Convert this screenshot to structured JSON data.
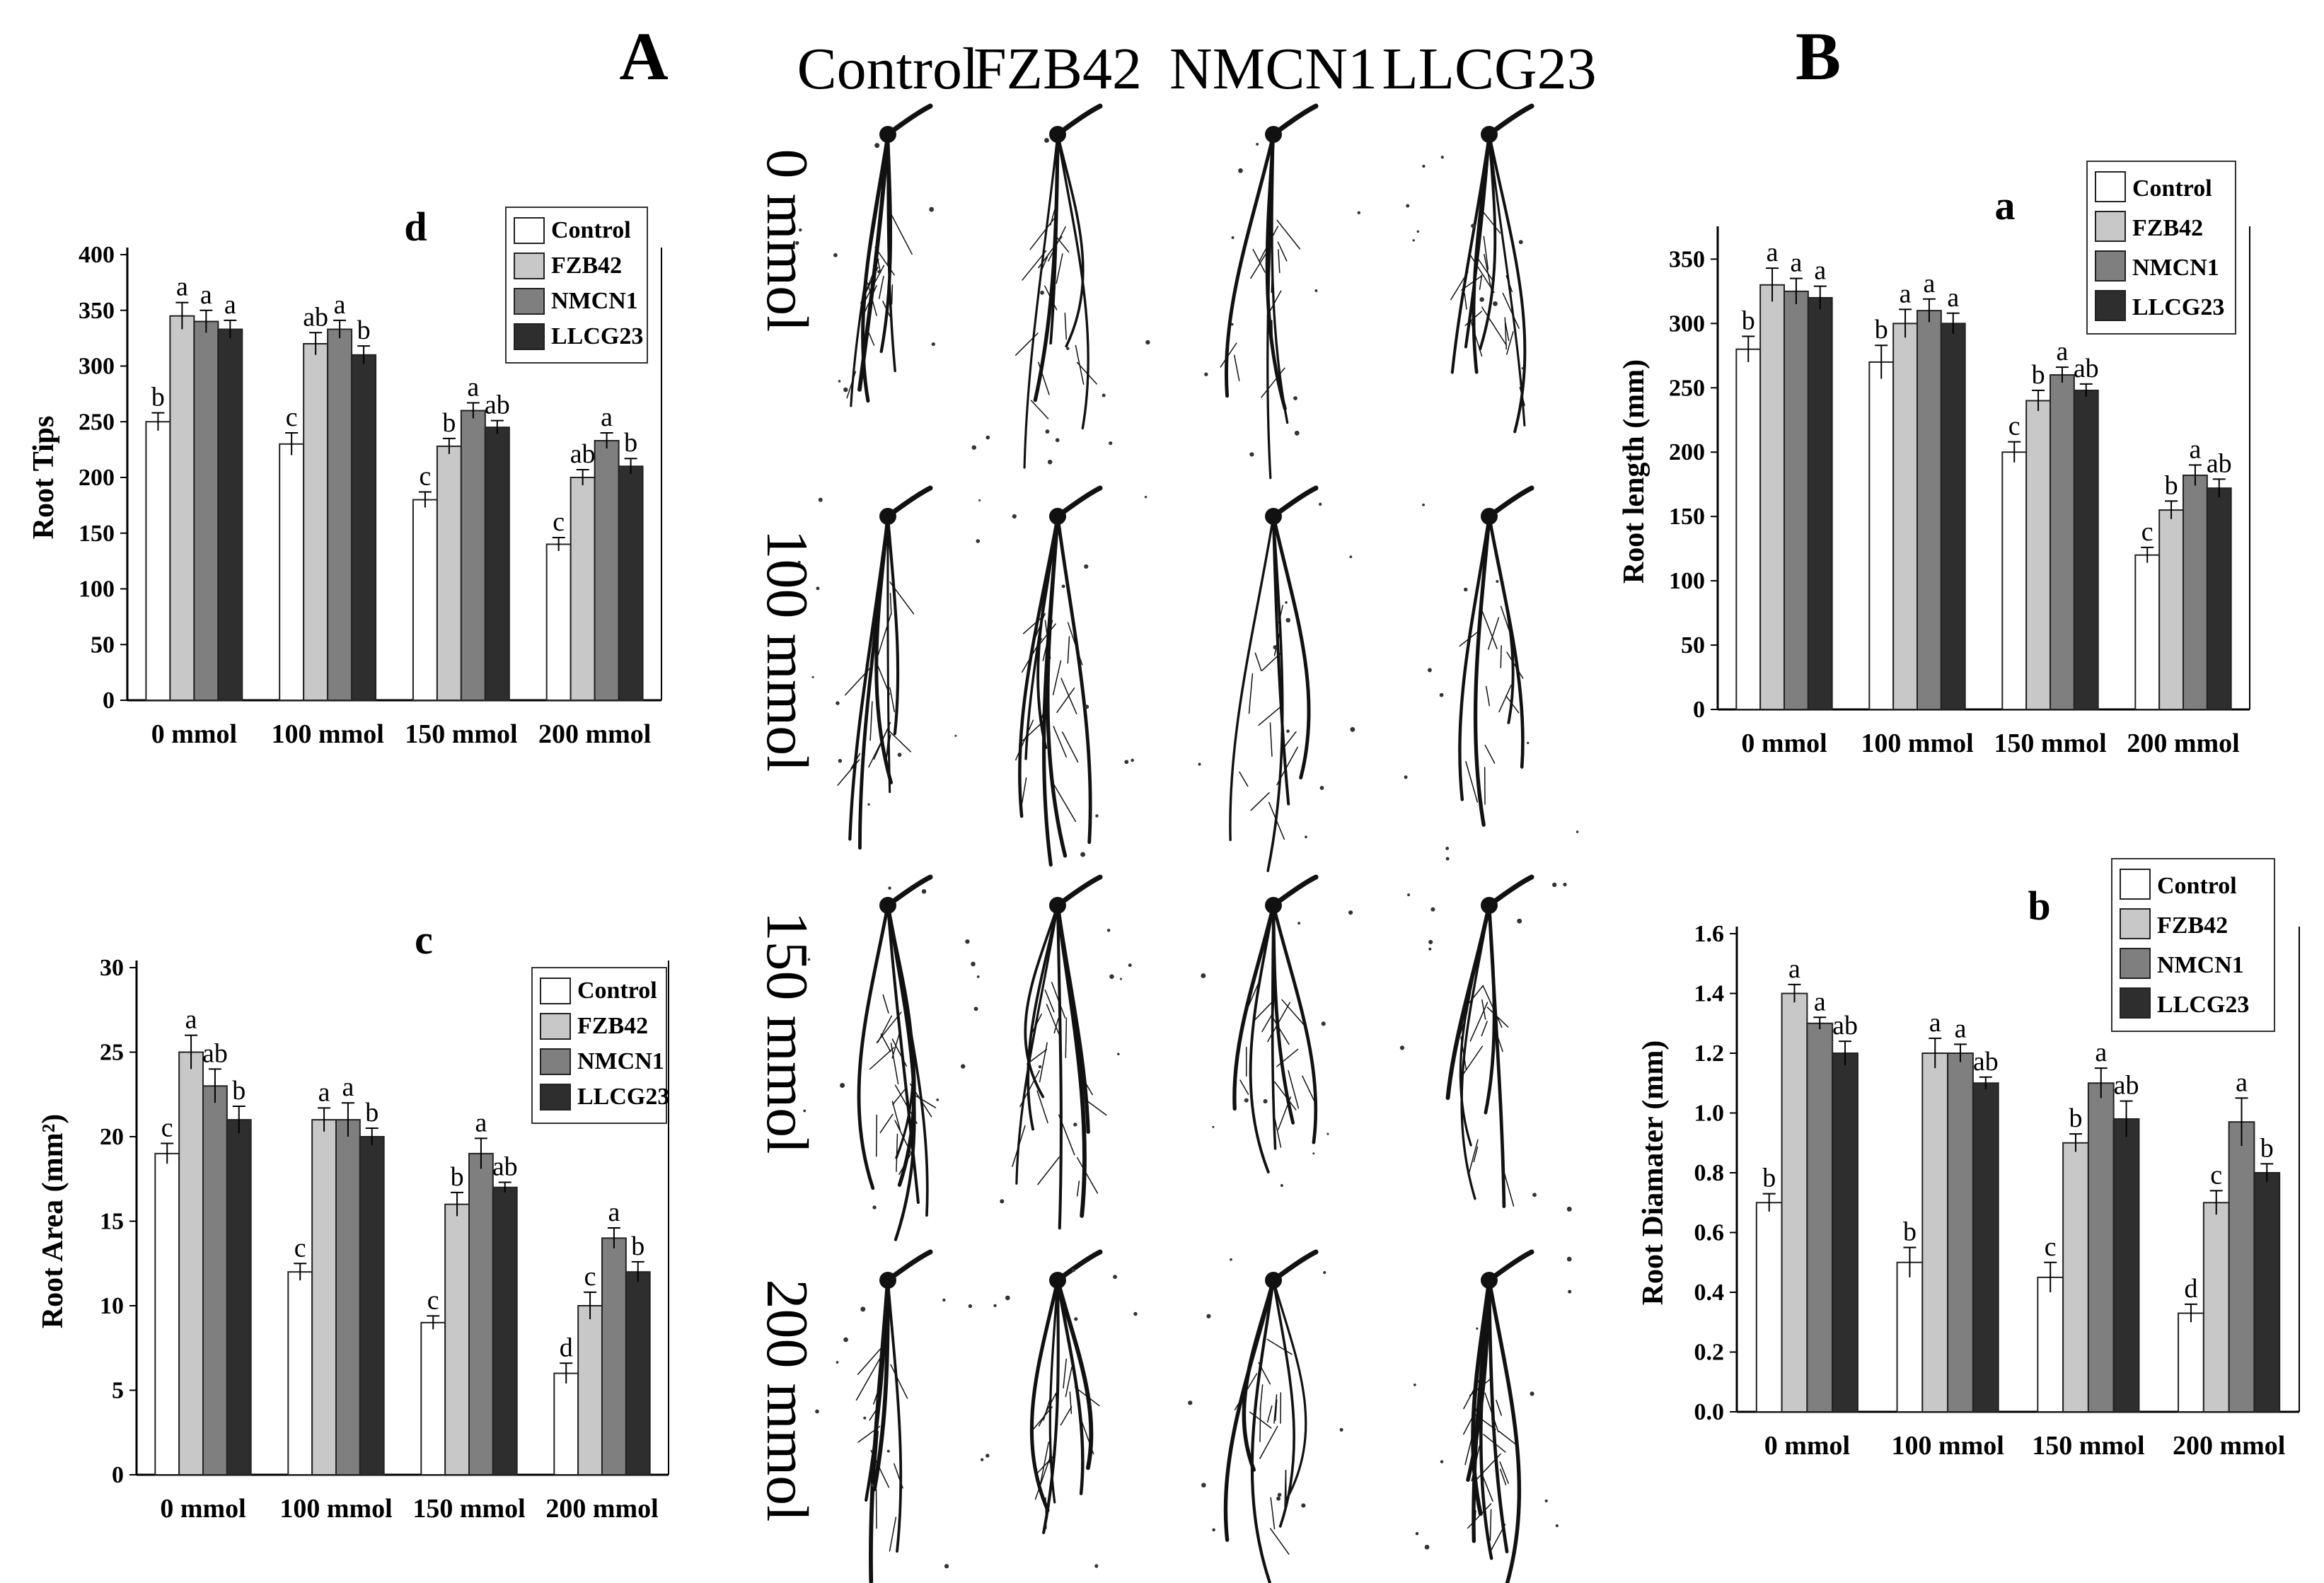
{
  "panel_labels": {
    "A": "A",
    "B": "B"
  },
  "photo_grid": {
    "columns": [
      "Control",
      "FZB42",
      "NMCN1",
      "LLCG23"
    ],
    "rows": [
      "0 mmol",
      "100 mmol",
      "150 mmol",
      "200 mmol"
    ]
  },
  "colors": {
    "Control": "#ffffff",
    "FZB42": "#c8c8c8",
    "NMCN1": "#7f7f7f",
    "LLCG23": "#2e2e2e"
  },
  "chart_data": [
    {
      "id": "d",
      "type": "bar",
      "title": "d",
      "ylabel": "Root Tips",
      "ylim": [
        0,
        400
      ],
      "yticks": [
        "0",
        "50",
        "100",
        "150",
        "200",
        "250",
        "300",
        "350",
        "400"
      ],
      "categories": [
        "0 mmol",
        "100 mmol",
        "150 mmol",
        "200 mmol"
      ],
      "legend_position": "top-right",
      "series": [
        {
          "name": "Control",
          "values": [
            250,
            230,
            180,
            140
          ],
          "errors": [
            8,
            10,
            7,
            6
          ],
          "labels": [
            "b",
            "c",
            "c",
            "c"
          ]
        },
        {
          "name": "FZB42",
          "values": [
            345,
            320,
            228,
            200
          ],
          "errors": [
            12,
            10,
            7,
            7
          ],
          "labels": [
            "a",
            "ab",
            "b",
            "ab"
          ]
        },
        {
          "name": "NMCN1",
          "values": [
            340,
            333,
            260,
            233
          ],
          "errors": [
            10,
            8,
            7,
            7
          ],
          "labels": [
            "a",
            "a",
            "a",
            "a"
          ]
        },
        {
          "name": "LLCG23",
          "values": [
            333,
            310,
            245,
            210
          ],
          "errors": [
            8,
            8,
            6,
            7
          ],
          "labels": [
            "a",
            "b",
            "ab",
            "b"
          ]
        }
      ]
    },
    {
      "id": "c",
      "type": "bar",
      "title": "c",
      "ylabel": "Root Area (mm²)",
      "ylim": [
        0,
        30
      ],
      "yticks": [
        "0",
        "5",
        "10",
        "15",
        "20",
        "25",
        "30"
      ],
      "categories": [
        "0 mmol",
        "100 mmol",
        "150 mmol",
        "200 mmol"
      ],
      "legend_position": "top-right",
      "series": [
        {
          "name": "Control",
          "values": [
            19,
            12,
            9,
            6
          ],
          "errors": [
            0.6,
            0.5,
            0.4,
            0.6
          ],
          "labels": [
            "c",
            "c",
            "c",
            "d"
          ]
        },
        {
          "name": "FZB42",
          "values": [
            25,
            21,
            16,
            10
          ],
          "errors": [
            1.0,
            0.7,
            0.7,
            0.8
          ],
          "labels": [
            "a",
            "a",
            "b",
            "c"
          ]
        },
        {
          "name": "NMCN1",
          "values": [
            23,
            21,
            19,
            14
          ],
          "errors": [
            1.0,
            1.0,
            0.9,
            0.6
          ],
          "labels": [
            "ab",
            "a",
            "a",
            "a"
          ]
        },
        {
          "name": "LLCG23",
          "values": [
            21,
            20,
            17,
            12
          ],
          "errors": [
            0.8,
            0.5,
            0.3,
            0.6
          ],
          "labels": [
            "b",
            "b",
            "ab",
            "b"
          ]
        }
      ]
    },
    {
      "id": "a",
      "type": "bar",
      "title": "a",
      "ylabel": "Root length (mm)",
      "ylim": [
        0,
        370
      ],
      "yticks": [
        "0",
        "50",
        "100",
        "150",
        "200",
        "250",
        "300",
        "350"
      ],
      "categories": [
        "0 mmol",
        "100 mmol",
        "150 mmol",
        "200 mmol"
      ],
      "legend_position": "top-right",
      "series": [
        {
          "name": "Control",
          "values": [
            280,
            270,
            200,
            120
          ],
          "errors": [
            10,
            13,
            8,
            6
          ],
          "labels": [
            "b",
            "b",
            "c",
            "c"
          ]
        },
        {
          "name": "FZB42",
          "values": [
            330,
            300,
            240,
            155
          ],
          "errors": [
            13,
            11,
            8,
            7
          ],
          "labels": [
            "a",
            "a",
            "b",
            "b"
          ]
        },
        {
          "name": "NMCN1",
          "values": [
            325,
            310,
            260,
            182
          ],
          "errors": [
            10,
            9,
            6,
            8
          ],
          "labels": [
            "a",
            "a",
            "a",
            "a"
          ]
        },
        {
          "name": "LLCG23",
          "values": [
            320,
            300,
            248,
            172
          ],
          "errors": [
            9,
            8,
            5,
            7
          ],
          "labels": [
            "a",
            "a",
            "ab",
            "ab"
          ]
        }
      ]
    },
    {
      "id": "b",
      "type": "bar",
      "title": "b",
      "ylabel": "Root Diamater (mm)",
      "ylim": [
        0,
        1.6
      ],
      "yticks": [
        "0.0",
        "0.2",
        "0.4",
        "0.6",
        "0.8",
        "1.0",
        "1.2",
        "1.4",
        "1.6"
      ],
      "categories": [
        "0 mmol",
        "100 mmol",
        "150 mmol",
        "200 mmol"
      ],
      "legend_position": "top-right",
      "series": [
        {
          "name": "Control",
          "values": [
            0.7,
            0.5,
            0.45,
            0.33
          ],
          "errors": [
            0.03,
            0.05,
            0.05,
            0.03
          ],
          "labels": [
            "b",
            "b",
            "c",
            "d"
          ]
        },
        {
          "name": "FZB42",
          "values": [
            1.4,
            1.2,
            0.9,
            0.7
          ],
          "errors": [
            0.03,
            0.05,
            0.03,
            0.04
          ],
          "labels": [
            "a",
            "a",
            "b",
            "c"
          ]
        },
        {
          "name": "NMCN1",
          "values": [
            1.3,
            1.2,
            1.1,
            0.97
          ],
          "errors": [
            0.02,
            0.03,
            0.05,
            0.08
          ],
          "labels": [
            "a",
            "a",
            "a",
            "a"
          ]
        },
        {
          "name": "LLCG23",
          "values": [
            1.2,
            1.1,
            0.98,
            0.8
          ],
          "errors": [
            0.04,
            0.02,
            0.06,
            0.03
          ],
          "labels": [
            "ab",
            "ab",
            "ab",
            "b"
          ]
        }
      ]
    }
  ]
}
